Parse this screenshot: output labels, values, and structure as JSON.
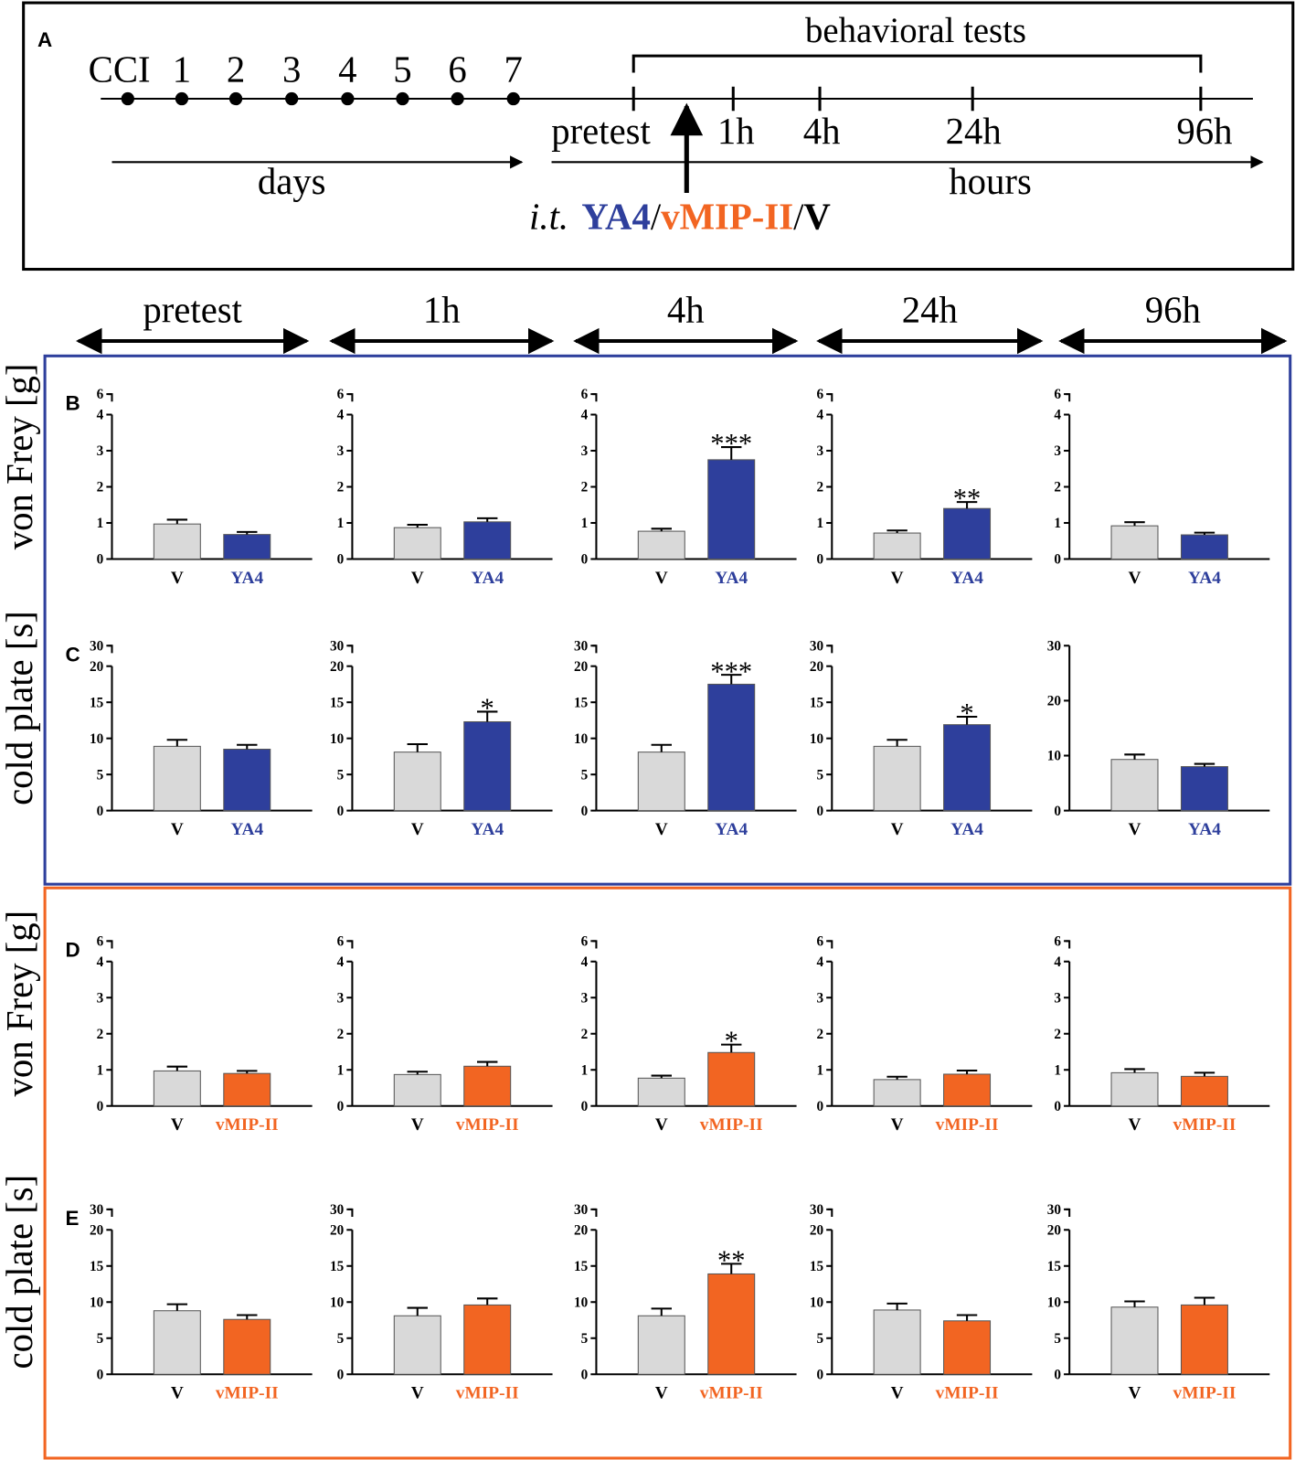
{
  "timeline": {
    "panel": "A",
    "start": "CCI",
    "days": [
      "1",
      "2",
      "3",
      "4",
      "5",
      "6",
      "7"
    ],
    "days_label": "days",
    "tests_label": "behavioral tests",
    "times": [
      "pretest",
      "1h",
      "4h",
      "24h",
      "96h"
    ],
    "hours_label": "hours",
    "injection": [
      "i.t.",
      "YA4",
      "/",
      "vMIP-II",
      "/",
      "V"
    ]
  },
  "columns": [
    "pretest",
    "1h",
    "4h",
    "24h",
    "96h"
  ],
  "rows": [
    {
      "panel": "B",
      "ylabel": "von Frey [g]"
    },
    {
      "panel": "C",
      "ylabel": "cold plate [s]"
    },
    {
      "panel": "D",
      "ylabel": "von Frey [g]"
    },
    {
      "panel": "E",
      "ylabel": "cold plate [s]"
    }
  ],
  "chart_data": [
    {
      "type": "bar",
      "categories": [
        "V",
        "YA4"
      ],
      "values": [
        0.97,
        0.68
      ],
      "errors": [
        0.12,
        0.07
      ],
      "significance": [
        null,
        null
      ],
      "colors": [
        "#d9d9d9",
        "#2e3f9c"
      ],
      "category_colors": [
        "#000000",
        "#2e3f9c"
      ],
      "ylim": [
        0,
        6
      ],
      "yticks": [
        0,
        1,
        2,
        3,
        4,
        6
      ],
      "ybreak": [
        4,
        6
      ]
    },
    {
      "type": "bar",
      "categories": [
        "V",
        "YA4"
      ],
      "values": [
        0.87,
        1.03
      ],
      "errors": [
        0.08,
        0.1
      ],
      "significance": [
        null,
        null
      ],
      "colors": [
        "#d9d9d9",
        "#2e3f9c"
      ],
      "category_colors": [
        "#000000",
        "#2e3f9c"
      ],
      "ylim": [
        0,
        6
      ],
      "yticks": [
        0,
        1,
        2,
        3,
        4,
        6
      ],
      "ybreak": [
        4,
        6
      ]
    },
    {
      "type": "bar",
      "categories": [
        "V",
        "YA4"
      ],
      "values": [
        0.77,
        2.75
      ],
      "errors": [
        0.07,
        0.35
      ],
      "significance": [
        null,
        "***"
      ],
      "colors": [
        "#d9d9d9",
        "#2e3f9c"
      ],
      "category_colors": [
        "#000000",
        "#2e3f9c"
      ],
      "ylim": [
        0,
        6
      ],
      "yticks": [
        0,
        1,
        2,
        3,
        4,
        6
      ],
      "ybreak": [
        4,
        6
      ]
    },
    {
      "type": "bar",
      "categories": [
        "V",
        "YA4"
      ],
      "values": [
        0.72,
        1.4
      ],
      "errors": [
        0.07,
        0.18
      ],
      "significance": [
        null,
        "**"
      ],
      "colors": [
        "#d9d9d9",
        "#2e3f9c"
      ],
      "category_colors": [
        "#000000",
        "#2e3f9c"
      ],
      "ylim": [
        0,
        6
      ],
      "yticks": [
        0,
        1,
        2,
        3,
        4,
        6
      ],
      "ybreak": [
        4,
        6
      ]
    },
    {
      "type": "bar",
      "categories": [
        "V",
        "YA4"
      ],
      "values": [
        0.92,
        0.67
      ],
      "errors": [
        0.1,
        0.06
      ],
      "significance": [
        null,
        null
      ],
      "colors": [
        "#d9d9d9",
        "#2e3f9c"
      ],
      "category_colors": [
        "#000000",
        "#2e3f9c"
      ],
      "ylim": [
        0,
        6
      ],
      "yticks": [
        0,
        1,
        2,
        3,
        4,
        6
      ],
      "ybreak": [
        4,
        6
      ]
    },
    {
      "type": "bar",
      "categories": [
        "V",
        "YA4"
      ],
      "values": [
        8.9,
        8.5
      ],
      "errors": [
        0.9,
        0.6
      ],
      "significance": [
        null,
        null
      ],
      "colors": [
        "#d9d9d9",
        "#2e3f9c"
      ],
      "category_colors": [
        "#000000",
        "#2e3f9c"
      ],
      "ylim": [
        0,
        30
      ],
      "yticks": [
        0,
        5,
        10,
        15,
        20,
        30
      ],
      "ybreak": [
        20,
        30
      ]
    },
    {
      "type": "bar",
      "categories": [
        "V",
        "YA4"
      ],
      "values": [
        8.1,
        12.3
      ],
      "errors": [
        1.1,
        1.4
      ],
      "significance": [
        null,
        "*"
      ],
      "colors": [
        "#d9d9d9",
        "#2e3f9c"
      ],
      "category_colors": [
        "#000000",
        "#2e3f9c"
      ],
      "ylim": [
        0,
        30
      ],
      "yticks": [
        0,
        5,
        10,
        15,
        20,
        30
      ],
      "ybreak": [
        20,
        30
      ]
    },
    {
      "type": "bar",
      "categories": [
        "V",
        "YA4"
      ],
      "values": [
        8.1,
        17.5
      ],
      "errors": [
        1.0,
        1.3
      ],
      "significance": [
        null,
        "***"
      ],
      "colors": [
        "#d9d9d9",
        "#2e3f9c"
      ],
      "category_colors": [
        "#000000",
        "#2e3f9c"
      ],
      "ylim": [
        0,
        30
      ],
      "yticks": [
        0,
        5,
        10,
        15,
        20,
        30
      ],
      "ybreak": [
        20,
        30
      ]
    },
    {
      "type": "bar",
      "categories": [
        "V",
        "YA4"
      ],
      "values": [
        8.9,
        11.9
      ],
      "errors": [
        0.9,
        1.1
      ],
      "significance": [
        null,
        "*"
      ],
      "colors": [
        "#d9d9d9",
        "#2e3f9c"
      ],
      "category_colors": [
        "#000000",
        "#2e3f9c"
      ],
      "ylim": [
        0,
        30
      ],
      "yticks": [
        0,
        5,
        10,
        15,
        20,
        30
      ],
      "ybreak": [
        20,
        30
      ]
    },
    {
      "type": "bar",
      "categories": [
        "V",
        "YA4"
      ],
      "values": [
        9.3,
        8.0
      ],
      "errors": [
        0.9,
        0.5
      ],
      "significance": [
        null,
        null
      ],
      "colors": [
        "#d9d9d9",
        "#2e3f9c"
      ],
      "category_colors": [
        "#000000",
        "#2e3f9c"
      ],
      "ylim": [
        0,
        30
      ],
      "yticks": [
        0,
        10,
        20,
        30
      ]
    },
    {
      "type": "bar",
      "categories": [
        "V",
        "vMIP-II"
      ],
      "values": [
        0.97,
        0.9
      ],
      "errors": [
        0.12,
        0.07
      ],
      "significance": [
        null,
        null
      ],
      "colors": [
        "#d9d9d9",
        "#f26522"
      ],
      "category_colors": [
        "#000000",
        "#f26522"
      ],
      "ylim": [
        0,
        6
      ],
      "yticks": [
        0,
        1,
        2,
        3,
        4,
        6
      ],
      "ybreak": [
        4,
        6
      ]
    },
    {
      "type": "bar",
      "categories": [
        "V",
        "vMIP-II"
      ],
      "values": [
        0.87,
        1.1
      ],
      "errors": [
        0.08,
        0.12
      ],
      "significance": [
        null,
        null
      ],
      "colors": [
        "#d9d9d9",
        "#f26522"
      ],
      "category_colors": [
        "#000000",
        "#f26522"
      ],
      "ylim": [
        0,
        6
      ],
      "yticks": [
        0,
        1,
        2,
        3,
        4,
        6
      ],
      "ybreak": [
        4,
        6
      ]
    },
    {
      "type": "bar",
      "categories": [
        "V",
        "vMIP-II"
      ],
      "values": [
        0.77,
        1.48
      ],
      "errors": [
        0.07,
        0.22
      ],
      "significance": [
        null,
        "*"
      ],
      "colors": [
        "#d9d9d9",
        "#f26522"
      ],
      "category_colors": [
        "#000000",
        "#f26522"
      ],
      "ylim": [
        0,
        6
      ],
      "yticks": [
        0,
        1,
        2,
        3,
        4,
        6
      ],
      "ybreak": [
        4,
        6
      ]
    },
    {
      "type": "bar",
      "categories": [
        "V",
        "vMIP-II"
      ],
      "values": [
        0.73,
        0.88
      ],
      "errors": [
        0.08,
        0.1
      ],
      "significance": [
        null,
        null
      ],
      "colors": [
        "#d9d9d9",
        "#f26522"
      ],
      "category_colors": [
        "#000000",
        "#f26522"
      ],
      "ylim": [
        0,
        6
      ],
      "yticks": [
        0,
        1,
        2,
        3,
        4,
        6
      ],
      "ybreak": [
        4,
        6
      ]
    },
    {
      "type": "bar",
      "categories": [
        "V",
        "vMIP-II"
      ],
      "values": [
        0.92,
        0.82
      ],
      "errors": [
        0.1,
        0.1
      ],
      "significance": [
        null,
        null
      ],
      "colors": [
        "#d9d9d9",
        "#f26522"
      ],
      "category_colors": [
        "#000000",
        "#f26522"
      ],
      "ylim": [
        0,
        6
      ],
      "yticks": [
        0,
        1,
        2,
        3,
        4,
        6
      ],
      "ybreak": [
        4,
        6
      ]
    },
    {
      "type": "bar",
      "categories": [
        "V",
        "vMIP-II"
      ],
      "values": [
        8.8,
        7.6
      ],
      "errors": [
        0.9,
        0.6
      ],
      "significance": [
        null,
        null
      ],
      "colors": [
        "#d9d9d9",
        "#f26522"
      ],
      "category_colors": [
        "#000000",
        "#f26522"
      ],
      "ylim": [
        0,
        30
      ],
      "yticks": [
        0,
        5,
        10,
        15,
        20,
        30
      ],
      "ybreak": [
        20,
        30
      ]
    },
    {
      "type": "bar",
      "categories": [
        "V",
        "vMIP-II"
      ],
      "values": [
        8.1,
        9.6
      ],
      "errors": [
        1.1,
        0.9
      ],
      "significance": [
        null,
        null
      ],
      "colors": [
        "#d9d9d9",
        "#f26522"
      ],
      "category_colors": [
        "#000000",
        "#f26522"
      ],
      "ylim": [
        0,
        30
      ],
      "yticks": [
        0,
        5,
        10,
        15,
        20,
        30
      ],
      "ybreak": [
        20,
        30
      ]
    },
    {
      "type": "bar",
      "categories": [
        "V",
        "vMIP-II"
      ],
      "values": [
        8.1,
        13.9
      ],
      "errors": [
        1.0,
        1.4
      ],
      "significance": [
        null,
        "**"
      ],
      "colors": [
        "#d9d9d9",
        "#f26522"
      ],
      "category_colors": [
        "#000000",
        "#f26522"
      ],
      "ylim": [
        0,
        30
      ],
      "yticks": [
        0,
        5,
        10,
        15,
        20,
        30
      ],
      "ybreak": [
        20,
        30
      ]
    },
    {
      "type": "bar",
      "categories": [
        "V",
        "vMIP-II"
      ],
      "values": [
        8.9,
        7.4
      ],
      "errors": [
        0.9,
        0.8
      ],
      "significance": [
        null,
        null
      ],
      "colors": [
        "#d9d9d9",
        "#f26522"
      ],
      "category_colors": [
        "#000000",
        "#f26522"
      ],
      "ylim": [
        0,
        30
      ],
      "yticks": [
        0,
        5,
        10,
        15,
        20,
        30
      ],
      "ybreak": [
        20,
        30
      ]
    },
    {
      "type": "bar",
      "categories": [
        "V",
        "vMIP-II"
      ],
      "values": [
        9.3,
        9.6
      ],
      "errors": [
        0.8,
        1.0
      ],
      "significance": [
        null,
        null
      ],
      "colors": [
        "#d9d9d9",
        "#f26522"
      ],
      "category_colors": [
        "#000000",
        "#f26522"
      ],
      "ylim": [
        0,
        30
      ],
      "yticks": [
        0,
        5,
        10,
        15,
        20,
        30
      ],
      "ybreak": [
        20,
        30
      ]
    }
  ]
}
